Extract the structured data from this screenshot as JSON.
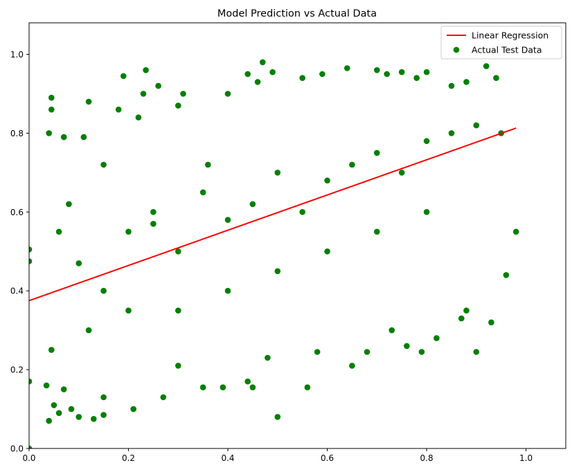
{
  "chart_data": {
    "type": "scatter",
    "title": "Model Prediction vs Actual Data",
    "xlabel": "",
    "ylabel": "",
    "xlim": [
      0,
      1.08
    ],
    "ylim": [
      0,
      1.08
    ],
    "xticks": [
      0.0,
      0.2,
      0.4,
      0.6,
      0.8,
      1.0
    ],
    "yticks": [
      0.0,
      0.2,
      0.4,
      0.6,
      0.8,
      1.0
    ],
    "xtick_labels": [
      "0.0",
      "0.2",
      "0.4",
      "0.6",
      "0.8",
      "1.0"
    ],
    "ytick_labels": [
      "0.0",
      "0.2",
      "0.4",
      "0.6",
      "0.8",
      "1.0"
    ],
    "grid": false,
    "legend_position": "top-right",
    "series": [
      {
        "name": "Linear Regression",
        "kind": "line",
        "color": "#ff0000",
        "points": [
          [
            0.0,
            0.375
          ],
          [
            0.98,
            0.813
          ]
        ]
      },
      {
        "name": "Actual Test Data",
        "kind": "scatter",
        "color": "#008000",
        "points": [
          [
            0.0,
            0.0
          ],
          [
            0.0,
            0.17
          ],
          [
            0.0,
            0.475
          ],
          [
            0.0,
            0.505
          ],
          [
            0.035,
            0.16
          ],
          [
            0.04,
            0.07
          ],
          [
            0.05,
            0.11
          ],
          [
            0.045,
            0.25
          ],
          [
            0.06,
            0.09
          ],
          [
            0.07,
            0.15
          ],
          [
            0.085,
            0.1
          ],
          [
            0.1,
            0.08
          ],
          [
            0.04,
            0.8
          ],
          [
            0.045,
            0.86
          ],
          [
            0.045,
            0.89
          ],
          [
            0.07,
            0.79
          ],
          [
            0.12,
            0.88
          ],
          [
            0.11,
            0.79
          ],
          [
            0.13,
            0.075
          ],
          [
            0.15,
            0.085
          ],
          [
            0.06,
            0.55
          ],
          [
            0.08,
            0.62
          ],
          [
            0.1,
            0.47
          ],
          [
            0.12,
            0.3
          ],
          [
            0.15,
            0.72
          ],
          [
            0.15,
            0.13
          ],
          [
            0.18,
            0.86
          ],
          [
            0.19,
            0.945
          ],
          [
            0.21,
            0.1
          ],
          [
            0.22,
            0.84
          ],
          [
            0.23,
            0.9
          ],
          [
            0.235,
            0.96
          ],
          [
            0.25,
            0.57
          ],
          [
            0.26,
            0.92
          ],
          [
            0.27,
            0.13
          ],
          [
            0.3,
            0.21
          ],
          [
            0.3,
            0.87
          ],
          [
            0.31,
            0.9
          ],
          [
            0.35,
            0.155
          ],
          [
            0.36,
            0.72
          ],
          [
            0.39,
            0.155
          ],
          [
            0.4,
            0.9
          ],
          [
            0.44,
            0.95
          ],
          [
            0.46,
            0.93
          ],
          [
            0.47,
            0.98
          ],
          [
            0.49,
            0.955
          ],
          [
            0.44,
            0.17
          ],
          [
            0.45,
            0.155
          ],
          [
            0.48,
            0.23
          ],
          [
            0.5,
            0.08
          ],
          [
            0.56,
            0.155
          ],
          [
            0.58,
            0.245
          ],
          [
            0.55,
            0.94
          ],
          [
            0.59,
            0.95
          ],
          [
            0.64,
            0.965
          ],
          [
            0.7,
            0.96
          ],
          [
            0.72,
            0.95
          ],
          [
            0.75,
            0.955
          ],
          [
            0.78,
            0.94
          ],
          [
            0.8,
            0.955
          ],
          [
            0.85,
            0.92
          ],
          [
            0.88,
            0.93
          ],
          [
            0.92,
            0.97
          ],
          [
            0.94,
            0.94
          ],
          [
            0.65,
            0.21
          ],
          [
            0.68,
            0.245
          ],
          [
            0.73,
            0.3
          ],
          [
            0.76,
            0.26
          ],
          [
            0.79,
            0.245
          ],
          [
            0.82,
            0.28
          ],
          [
            0.87,
            0.33
          ],
          [
            0.9,
            0.245
          ],
          [
            0.93,
            0.32
          ],
          [
            0.88,
            0.35
          ],
          [
            0.96,
            0.44
          ],
          [
            0.98,
            0.55
          ],
          [
            0.2,
            0.55
          ],
          [
            0.25,
            0.6
          ],
          [
            0.3,
            0.5
          ],
          [
            0.35,
            0.65
          ],
          [
            0.4,
            0.58
          ],
          [
            0.45,
            0.62
          ],
          [
            0.5,
            0.7
          ],
          [
            0.55,
            0.6
          ],
          [
            0.6,
            0.68
          ],
          [
            0.65,
            0.72
          ],
          [
            0.7,
            0.75
          ],
          [
            0.75,
            0.7
          ],
          [
            0.8,
            0.78
          ],
          [
            0.85,
            0.8
          ],
          [
            0.9,
            0.82
          ],
          [
            0.95,
            0.8
          ],
          [
            0.3,
            0.35
          ],
          [
            0.4,
            0.4
          ],
          [
            0.5,
            0.45
          ],
          [
            0.6,
            0.5
          ],
          [
            0.7,
            0.55
          ],
          [
            0.8,
            0.6
          ],
          [
            0.2,
            0.35
          ],
          [
            0.15,
            0.4
          ]
        ]
      }
    ]
  }
}
